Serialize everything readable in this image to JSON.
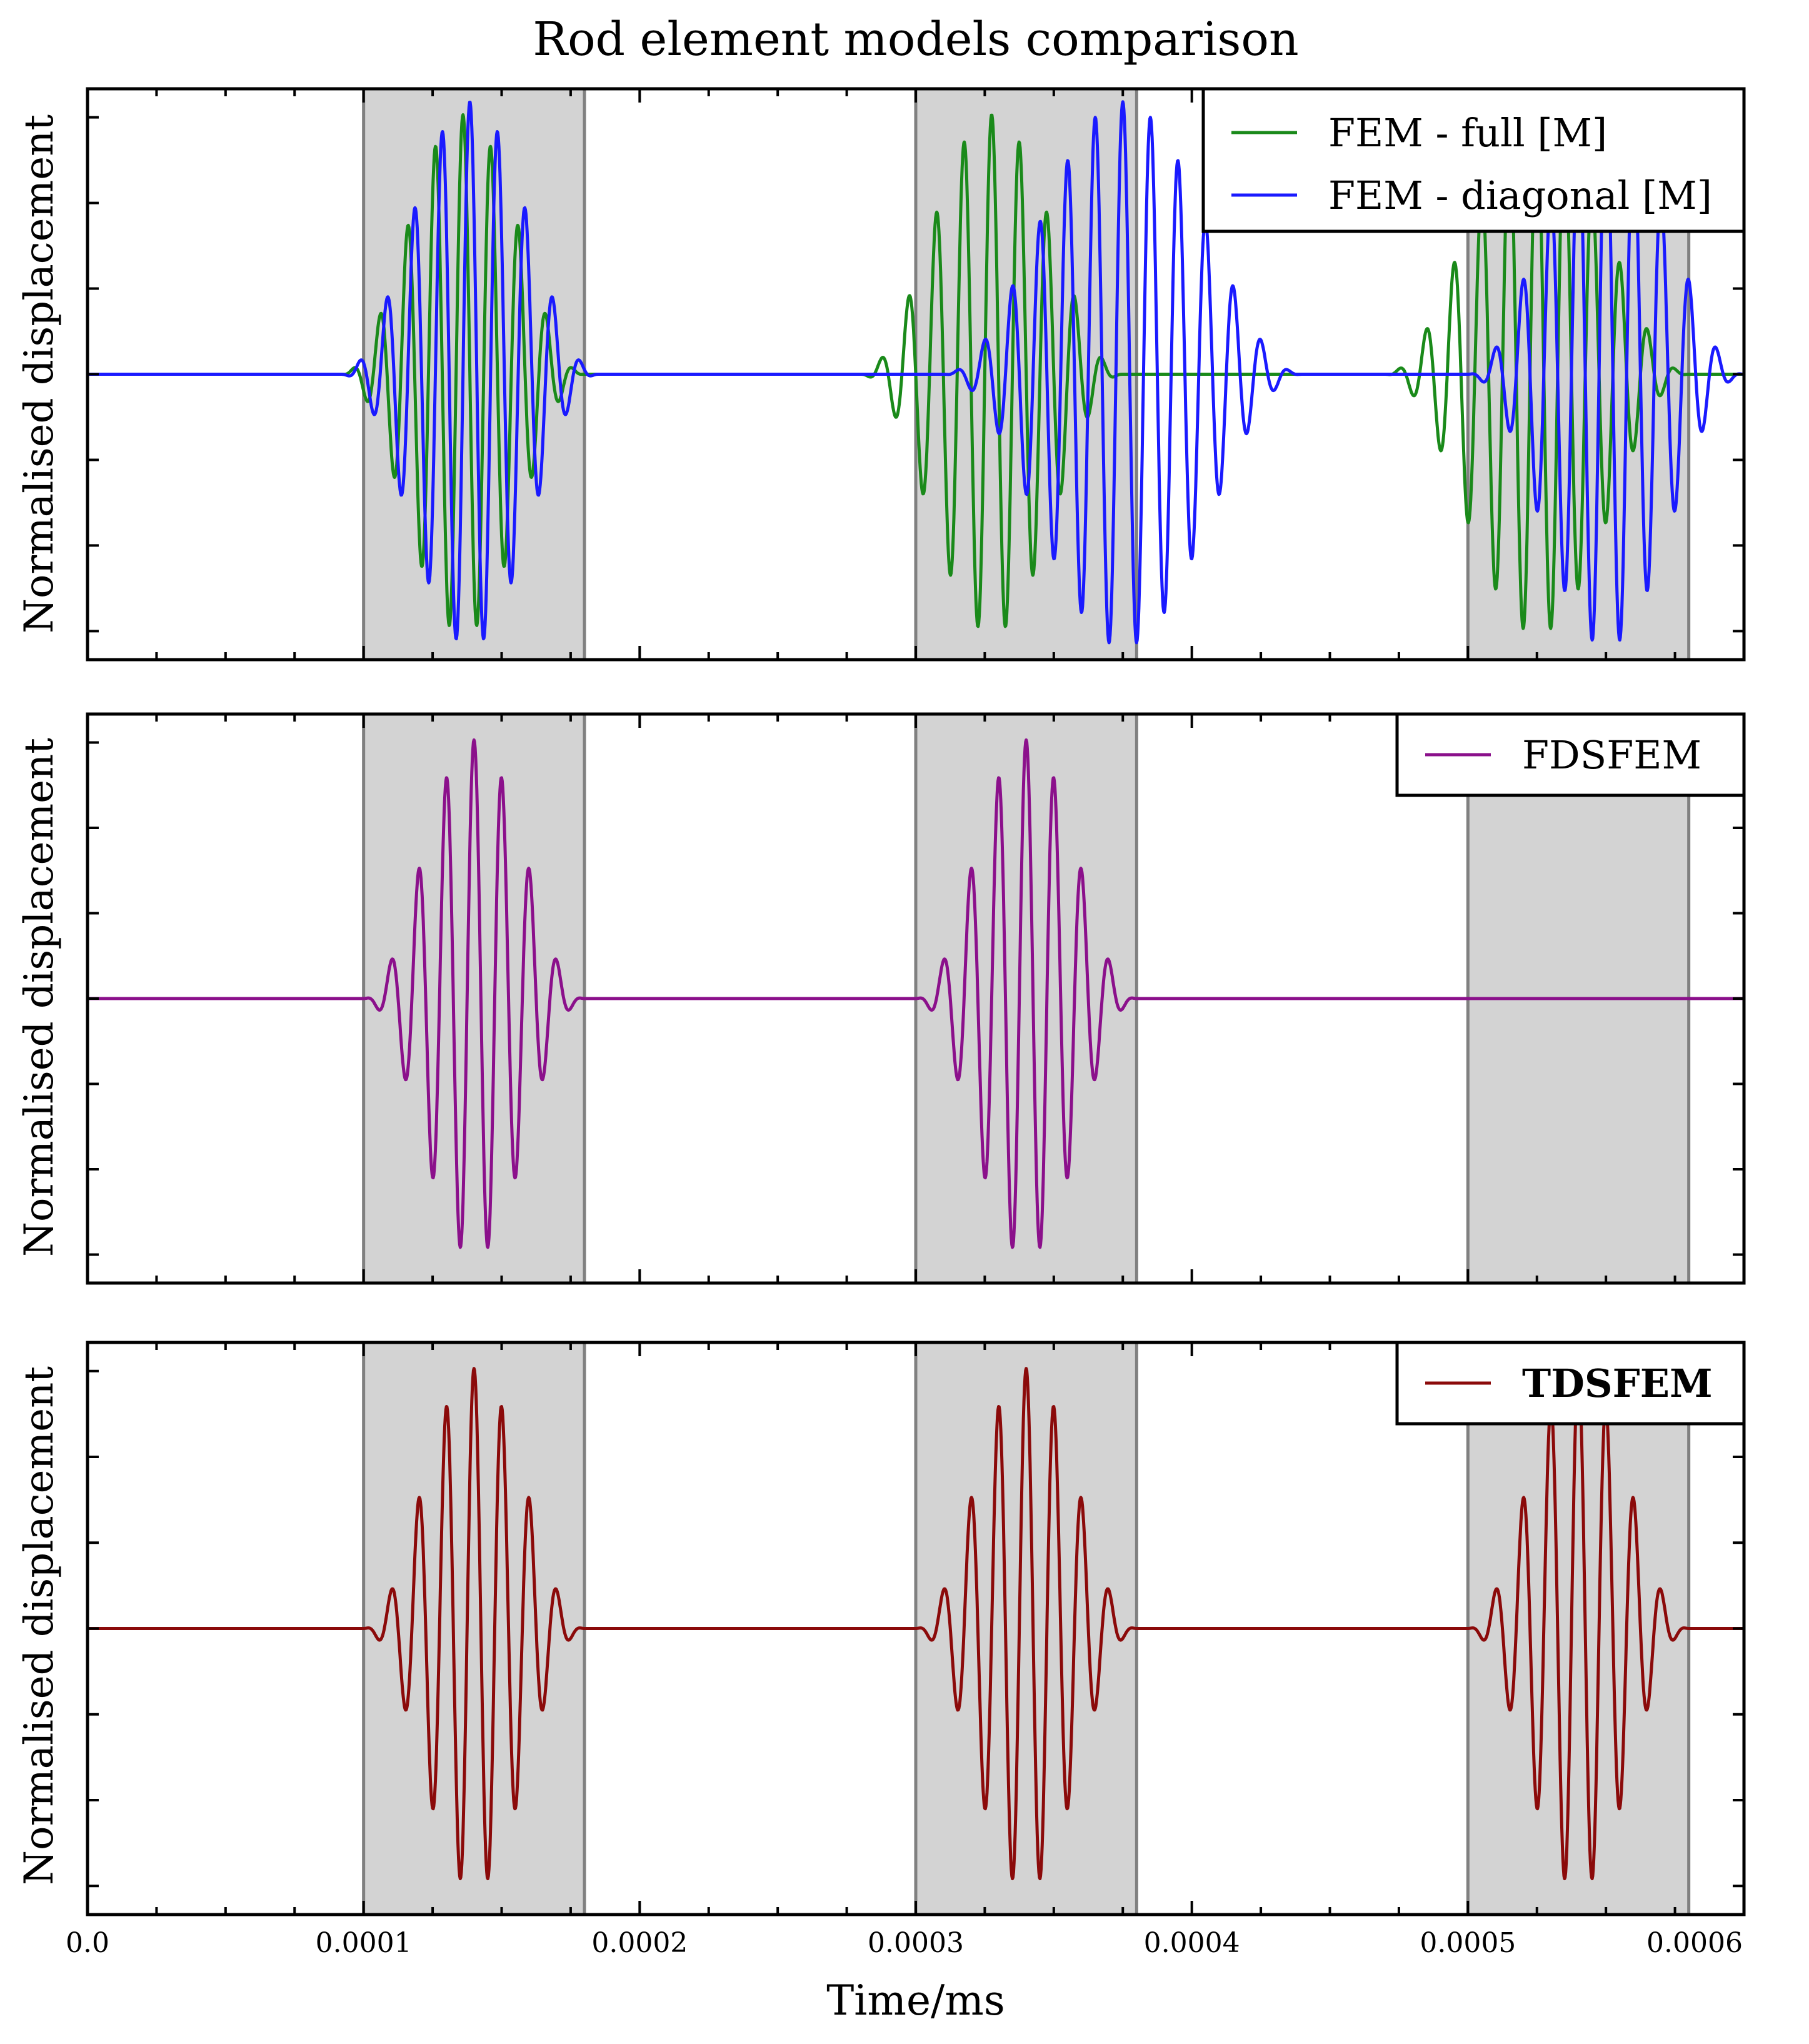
{
  "chart_data": {
    "type": "line",
    "title": "Rod element models comparison",
    "xlabel": "Time/ms",
    "ylabel": "Normalised displacement",
    "xlim": [
      0,
      0.0006
    ],
    "xticks": [
      "0.0",
      "0.0001",
      "0.0002",
      "0.0003",
      "0.0004",
      "0.0005",
      "0.0006"
    ],
    "shaded_windows": [
      [
        0.0001,
        0.00018
      ],
      [
        0.0003,
        0.00038
      ],
      [
        0.0005,
        0.00058
      ]
    ],
    "colors": {
      "fem_full": "#1a8a1a",
      "fem_diagonal": "#1a1aff",
      "fdsfem": "#8b108b",
      "tdsfem": "#8b0a0a",
      "shade": "#d3d3d3",
      "shade_edge": "#808080"
    },
    "panels": [
      {
        "ylim": [
          -1.1,
          1.1
        ],
        "legend": "top-right",
        "series": [
          {
            "name": "FEM - full [M]",
            "color_key": "fem_full",
            "packets": [
              {
                "t0": 9.2e-05,
                "t1": 0.00018,
                "amplitude": 1.0,
                "freq_hz": 100000
              },
              {
                "t0": 0.00028,
                "t1": 0.000375,
                "amplitude": 1.0,
                "freq_hz": 100000
              },
              {
                "t0": 0.00047,
                "t1": 0.00058,
                "amplitude": 1.0,
                "freq_hz": 100000
              }
            ]
          },
          {
            "name": "FEM - diagonal [M]",
            "color_key": "fem_diagonal",
            "packets": [
              {
                "t0": 9.2e-05,
                "t1": 0.000185,
                "amplitude": 1.05,
                "freq_hz": 100000
              },
              {
                "t0": 0.00031,
                "t1": 0.00044,
                "amplitude": 1.05,
                "freq_hz": 100000
              },
              {
                "t0": 0.0005,
                "t1": 0.0006,
                "amplitude": 1.05,
                "freq_hz": 100000
              }
            ]
          }
        ]
      },
      {
        "ylim": [
          -1.1,
          1.1
        ],
        "legend": "top-right",
        "series": [
          {
            "name": "FDSFEM",
            "color_key": "fdsfem",
            "packets": [
              {
                "t0": 0.0001,
                "t1": 0.00018,
                "amplitude": 1.0,
                "freq_hz": 100000
              },
              {
                "t0": 0.0003,
                "t1": 0.00038,
                "amplitude": 1.0,
                "freq_hz": 100000
              }
            ]
          }
        ]
      },
      {
        "ylim": [
          -1.1,
          1.1
        ],
        "legend": "top-right",
        "series": [
          {
            "name": "TDSFEM",
            "color_key": "tdsfem",
            "packets": [
              {
                "t0": 0.0001,
                "t1": 0.00018,
                "amplitude": 1.0,
                "freq_hz": 100000
              },
              {
                "t0": 0.0003,
                "t1": 0.00038,
                "amplitude": 1.0,
                "freq_hz": 100000
              },
              {
                "t0": 0.0005,
                "t1": 0.00058,
                "amplitude": 1.0,
                "freq_hz": 100000
              }
            ]
          }
        ]
      }
    ]
  }
}
